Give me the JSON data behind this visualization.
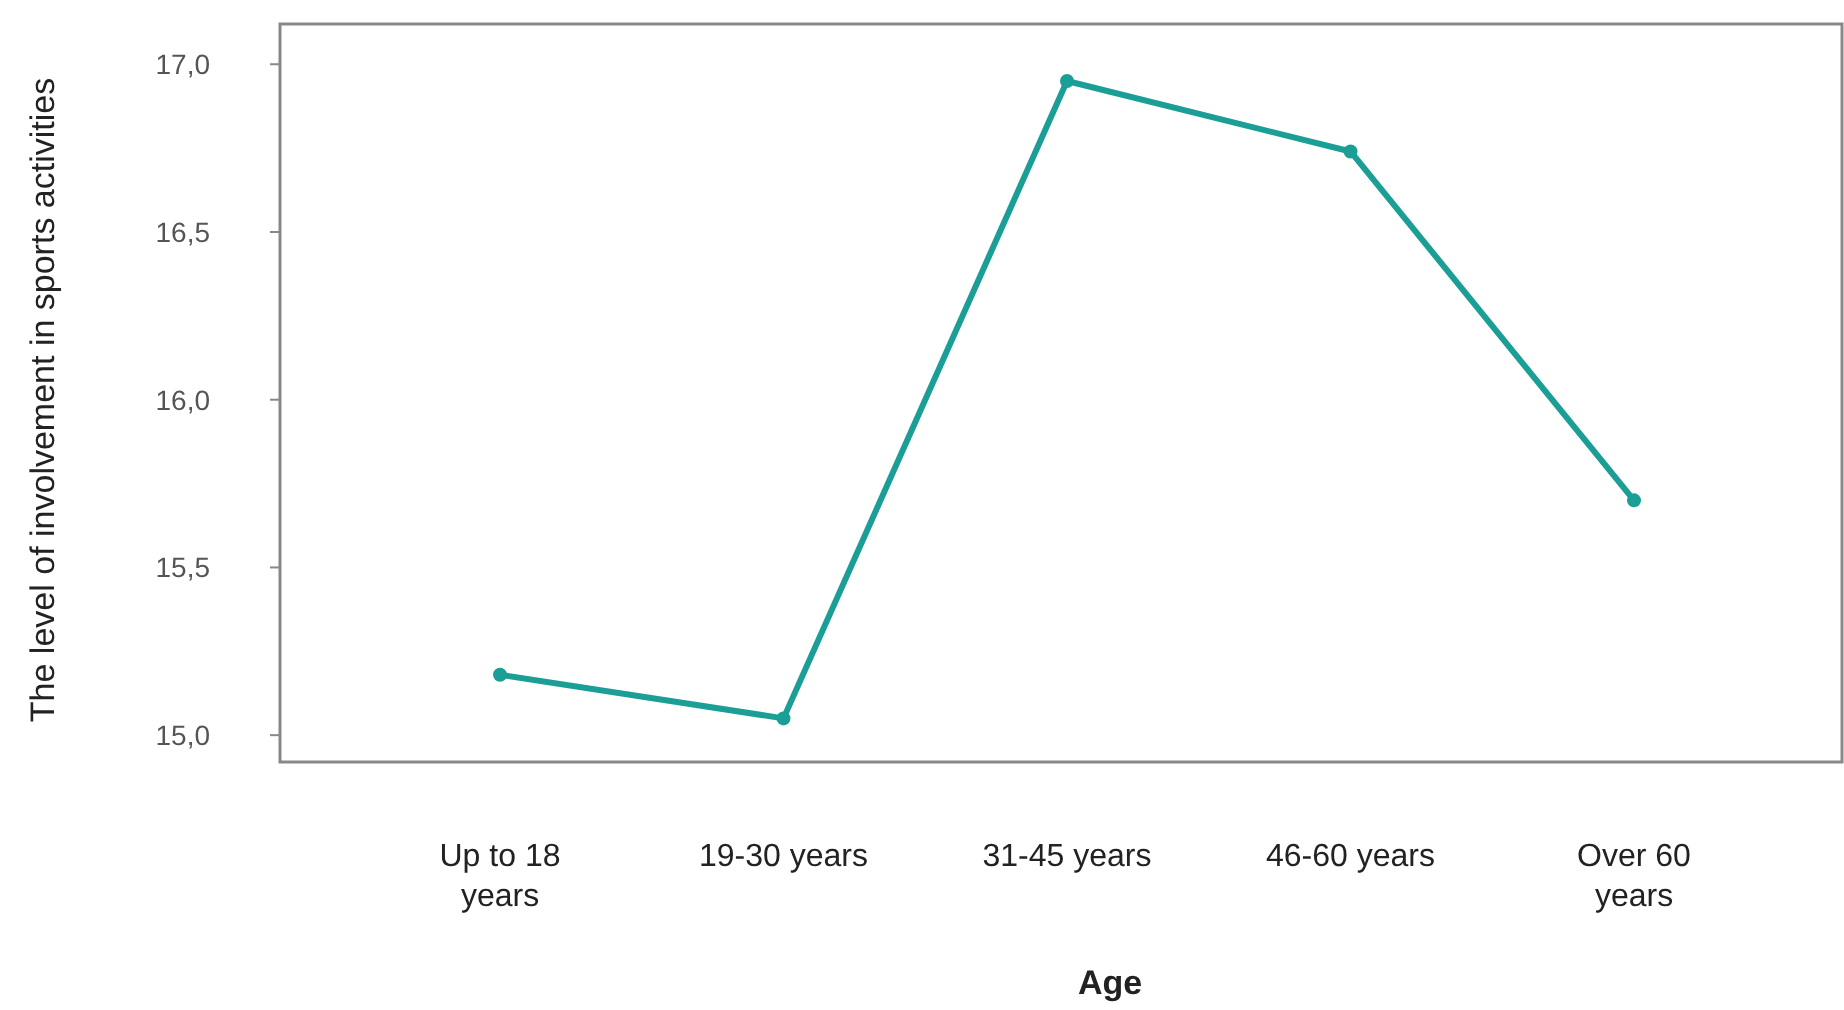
{
  "chart_data": {
    "type": "line",
    "xlabel": "Age",
    "ylabel": "The level of involvement in sports activities",
    "categories": [
      "Up to 18 years",
      "19-30 years",
      "31-45 years",
      "46-60 years",
      "Over 60 years"
    ],
    "series": [
      {
        "color": "#1a9e96",
        "values": [
          15.18,
          15.05,
          16.95,
          16.74,
          15.7
        ]
      }
    ],
    "ylim": [
      14.92,
      17.12
    ],
    "yticks": [
      {
        "value": 15,
        "label": "15,0"
      },
      {
        "value": 15.5,
        "label": "15,5"
      },
      {
        "value": 16,
        "label": "16,0"
      },
      {
        "value": 16.5,
        "label": "16,5"
      },
      {
        "value": 17,
        "label": "17,0"
      }
    ],
    "marker": "circle",
    "line_style": "solid"
  }
}
